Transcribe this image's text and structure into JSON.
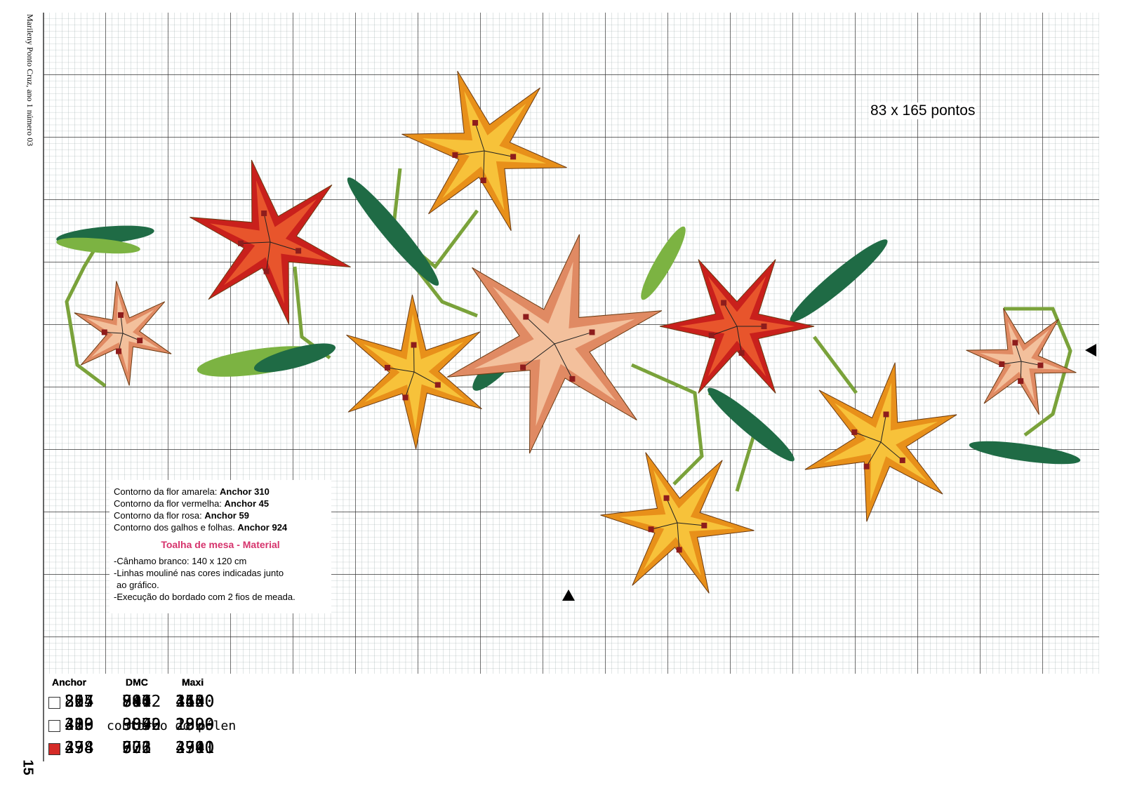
{
  "side_caption": "Marileny Ponto Cruz, ano 1 número 03",
  "page_number": "15",
  "dimensions": "83 x 165 pontos",
  "notes": {
    "outlines": [
      {
        "label": "Contorno da flor amarela:",
        "value": "Anchor 310"
      },
      {
        "label": "Contorno da flor vermelha:",
        "value": "Anchor 45"
      },
      {
        "label": "Contorno da flor rosa:",
        "value": "Anchor 59"
      },
      {
        "label": "Contorno dos galhos e folhas.",
        "value": "Anchor 924"
      }
    ],
    "material_title": "Toalha de mesa - Material",
    "material": [
      "-Cânhamo branco: 140 x 120 cm",
      "-Linhas mouliné nas cores indicadas junto",
      "ao gráfico.",
      "-Execução do bordado com 2 fios de meada."
    ]
  },
  "legend": {
    "groups": [
      {
        "headers": [
          "Anchor",
          "DMC",
          "Maxi"
        ],
        "rows": [
          [
            "26",
            "894",
            "2600"
          ],
          [
            "41",
            "3832",
            "2900"
          ],
          [
            "47",
            "321",
            "4701"
          ]
        ]
      },
      {
        "headers": [
          "Anchor",
          "DMC",
          "Maxi"
        ],
        "rows": [
          [
            "22",
            "816",
            "1120"
          ],
          [
            "230",
            "909",
            "2300"
          ],
          [
            "238",
            "703",
            "2390"
          ]
        ]
      },
      {
        "headers": [
          "Anchor",
          "DMC",
          "Maxi"
        ],
        "rows": [
          [
            "255",
            "907",
            "2550"
          ],
          [
            "289",
            "307",
            "2890"
          ],
          [
            "298",
            "972",
            "2910"
          ]
        ]
      },
      {
        "headers": [
          "Anchor",
          "DMC",
          "Maxi"
        ],
        "rows": [
          [
            "314",
            "741",
            "3140"
          ],
          [
            "329",
            "3340",
            "1329"
          ],
          [
            "334",
            "606",
            "3340"
          ]
        ]
      },
      {
        "headers": [
          "Anchor",
          "DMC",
          "Maxi"
        ],
        "rows": [
          [
            "897",
            "3802",
            "4400"
          ],
          [
            "403",
            "contorno do pólen"
          ]
        ]
      }
    ]
  }
}
